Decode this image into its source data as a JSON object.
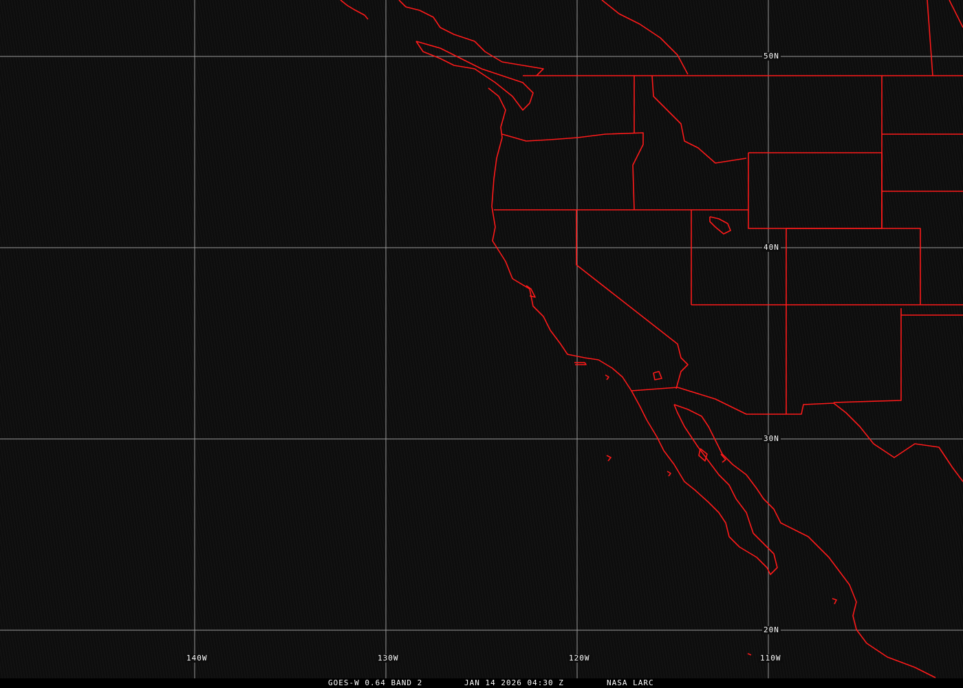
{
  "lat_labels": [
    "50N",
    "40N",
    "30N",
    "20N"
  ],
  "lon_labels": [
    "140W",
    "130W",
    "120W",
    "110W"
  ],
  "caption": {
    "satellite": "GOES-W 0.64 BAND 2",
    "datetime": "JAN 14 2026 04:30 Z",
    "source": "NASA LARC"
  },
  "colors": {
    "boundaries": "#ff0000",
    "grid": "#9a9a9a",
    "background": "#0d0d0d"
  }
}
